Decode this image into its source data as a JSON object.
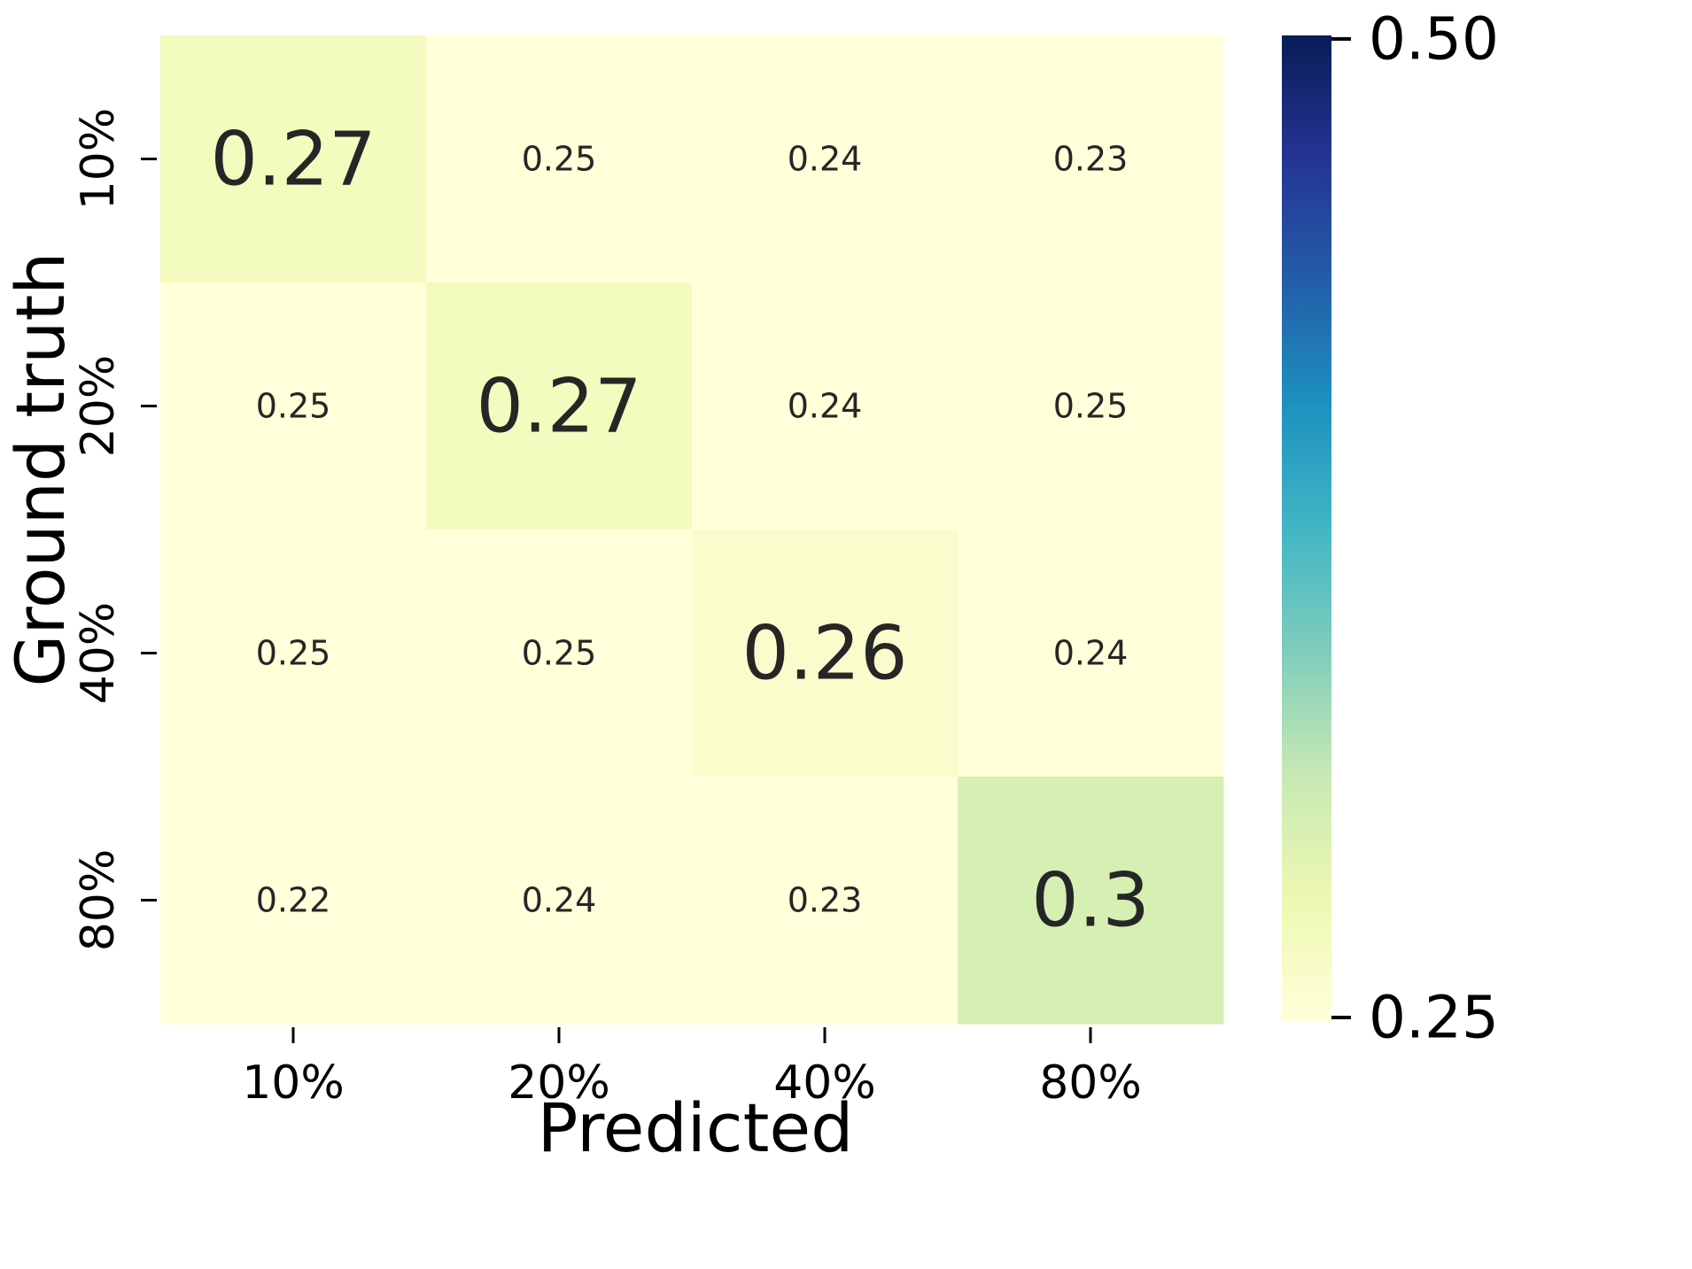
{
  "chart_data": {
    "type": "heatmap",
    "title": "",
    "xlabel": "Predicted",
    "ylabel": "Ground truth",
    "x_categories": [
      "10%",
      "20%",
      "40%",
      "80%"
    ],
    "y_categories": [
      "10%",
      "20%",
      "40%",
      "80%"
    ],
    "values": [
      [
        0.27,
        0.25,
        0.24,
        0.23
      ],
      [
        0.25,
        0.27,
        0.24,
        0.25
      ],
      [
        0.25,
        0.25,
        0.26,
        0.24
      ],
      [
        0.22,
        0.24,
        0.23,
        0.3
      ]
    ],
    "cell_labels": [
      [
        "0.27",
        "0.25",
        "0.24",
        "0.23"
      ],
      [
        "0.25",
        "0.27",
        "0.24",
        "0.25"
      ],
      [
        "0.25",
        "0.25",
        "0.26",
        "0.24"
      ],
      [
        "0.22",
        "0.24",
        "0.23",
        "0.3"
      ]
    ],
    "highlight_diagonal": true,
    "colorbar": {
      "min": 0.25,
      "max": 0.5,
      "tick_labels": [
        "0.25",
        "0.50"
      ],
      "colormap": "YlGnBu",
      "colors": [
        "#ffffd9",
        "#edf8b1",
        "#c7e9b4",
        "#7fcdbb",
        "#41b6c4",
        "#1d91c0",
        "#225ea8",
        "#253494",
        "#081d58"
      ]
    }
  }
}
